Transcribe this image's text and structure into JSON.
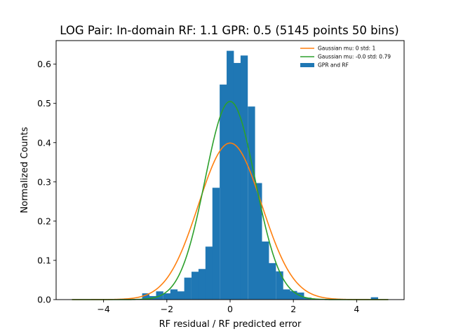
{
  "chart_data": {
    "type": "bar",
    "title": "LOG Pair: In-domain RF: 1.1 GPR: 0.5 (5145 points 50 bins)",
    "xlabel": "RF residual / RF predicted error",
    "ylabel": "Normalized Counts",
    "xlim": [
      -5.5,
      5.5
    ],
    "ylim": [
      0,
      0.66
    ],
    "xticks": [
      -4,
      -2,
      0,
      2,
      4
    ],
    "yticks": [
      0.0,
      0.1,
      0.2,
      0.3,
      0.4,
      0.5,
      0.6
    ],
    "legend_position": "top-right",
    "grid": false,
    "histogram": {
      "name": "GPR and RF",
      "color": "#1f77b4",
      "bin_width": 0.2223,
      "bins": [
        {
          "x0": -2.78,
          "value": 0.016
        },
        {
          "x0": -2.56,
          "value": 0.009
        },
        {
          "x0": -2.34,
          "value": 0.021
        },
        {
          "x0": -2.11,
          "value": 0.016
        },
        {
          "x0": -1.89,
          "value": 0.026
        },
        {
          "x0": -1.67,
          "value": 0.021
        },
        {
          "x0": -1.45,
          "value": 0.056
        },
        {
          "x0": -1.22,
          "value": 0.071
        },
        {
          "x0": -1.0,
          "value": 0.078
        },
        {
          "x0": -0.78,
          "value": 0.135
        },
        {
          "x0": -0.56,
          "value": 0.285
        },
        {
          "x0": -0.33,
          "value": 0.548
        },
        {
          "x0": -0.11,
          "value": 0.634
        },
        {
          "x0": 0.11,
          "value": 0.603
        },
        {
          "x0": 0.33,
          "value": 0.622
        },
        {
          "x0": 0.56,
          "value": 0.492
        },
        {
          "x0": 0.78,
          "value": 0.297
        },
        {
          "x0": 1.0,
          "value": 0.148
        },
        {
          "x0": 1.22,
          "value": 0.093
        },
        {
          "x0": 1.45,
          "value": 0.072
        },
        {
          "x0": 1.67,
          "value": 0.026
        },
        {
          "x0": 1.89,
          "value": 0.022
        },
        {
          "x0": 2.11,
          "value": 0.018
        },
        {
          "x0": 2.34,
          "value": 0.005
        },
        {
          "x0": 4.45,
          "value": 0.006
        }
      ]
    },
    "series": [
      {
        "name": "Gaussian mu: 0 std: 1",
        "color": "#ff7f0e",
        "mu": 0,
        "std": 1,
        "x_range": [
          -5,
          5
        ]
      },
      {
        "name": "Gaussian mu: -0.0 std: 0.79",
        "color": "#2ca02c",
        "mu": 0,
        "std": 0.79,
        "x_range": [
          -5,
          5
        ]
      }
    ]
  }
}
